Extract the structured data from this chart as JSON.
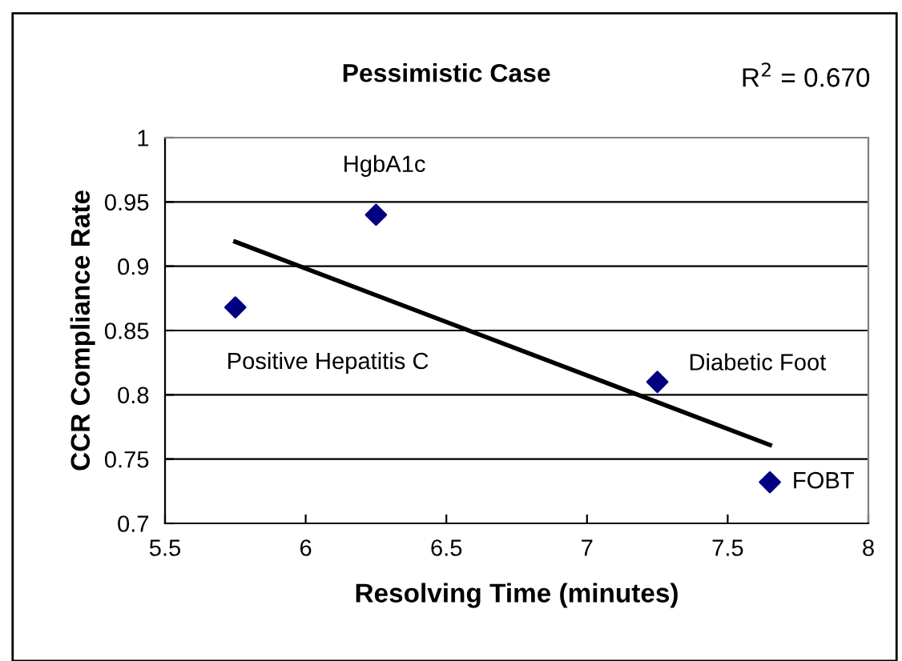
{
  "chart_data": {
    "type": "scatter",
    "title": "Pessimistic Case",
    "xlabel": "Resolving Time (minutes)",
    "ylabel": "CCR Compliance Rate",
    "xlim": [
      5.5,
      8
    ],
    "xticks": [
      5.5,
      6,
      6.5,
      7,
      7.5,
      8
    ],
    "ylim": [
      0.7,
      1
    ],
    "yticks": [
      0.7,
      0.75,
      0.8,
      0.85,
      0.9,
      0.95,
      1
    ],
    "grid": "y",
    "marker": "diamond",
    "legend": false,
    "series": [
      {
        "color": "#000080",
        "x": [
          5.75,
          6.25,
          7.25,
          7.65
        ],
        "values": [
          0.868,
          0.94,
          0.81,
          0.732
        ]
      },
      {
        "type": "line",
        "color": "#000000",
        "x": [
          5.75,
          7.65
        ],
        "values": [
          0.919,
          0.761
        ],
        "line_style": "solid",
        "marker": "none"
      }
    ],
    "annotations": [
      "R$^{2}$ = 0.670",
      {
        "text": "Positive Hepatitis C",
        "x": 5.75,
        "y": 0.868
      },
      {
        "text": "HgbA1c",
        "x": 6.25,
        "y": 0.94
      },
      {
        "text": "Diabetic Foot",
        "x": 7.25,
        "y": 0.81
      },
      {
        "text": "FOBT",
        "x": 7.65,
        "y": 0.732
      }
    ]
  }
}
